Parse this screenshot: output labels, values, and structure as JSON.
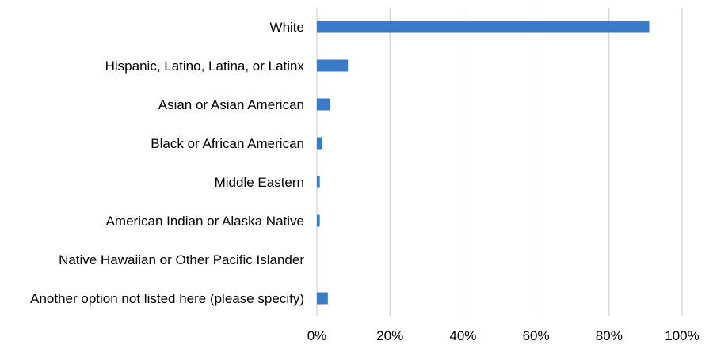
{
  "chart_data": {
    "type": "bar",
    "orientation": "horizontal",
    "categories": [
      "White",
      "Hispanic, Latino, Latina, or Latinx",
      "Asian or Asian American",
      "Black or African American",
      "Middle Eastern",
      "American Indian or Alaska Native",
      "Native Hawaiian or Other Pacific Islander",
      "Another option not listed here (please specify)"
    ],
    "values": [
      91.0,
      8.5,
      3.5,
      1.5,
      0.8,
      0.8,
      0.0,
      3.0
    ],
    "x_ticks": [
      "0%",
      "20%",
      "40%",
      "60%",
      "80%",
      "100%"
    ],
    "xlim": [
      0,
      100
    ],
    "grid": "vertical",
    "legend": "none",
    "bar_color": "#3A7BC8",
    "grid_color": "#C8C8C8"
  }
}
